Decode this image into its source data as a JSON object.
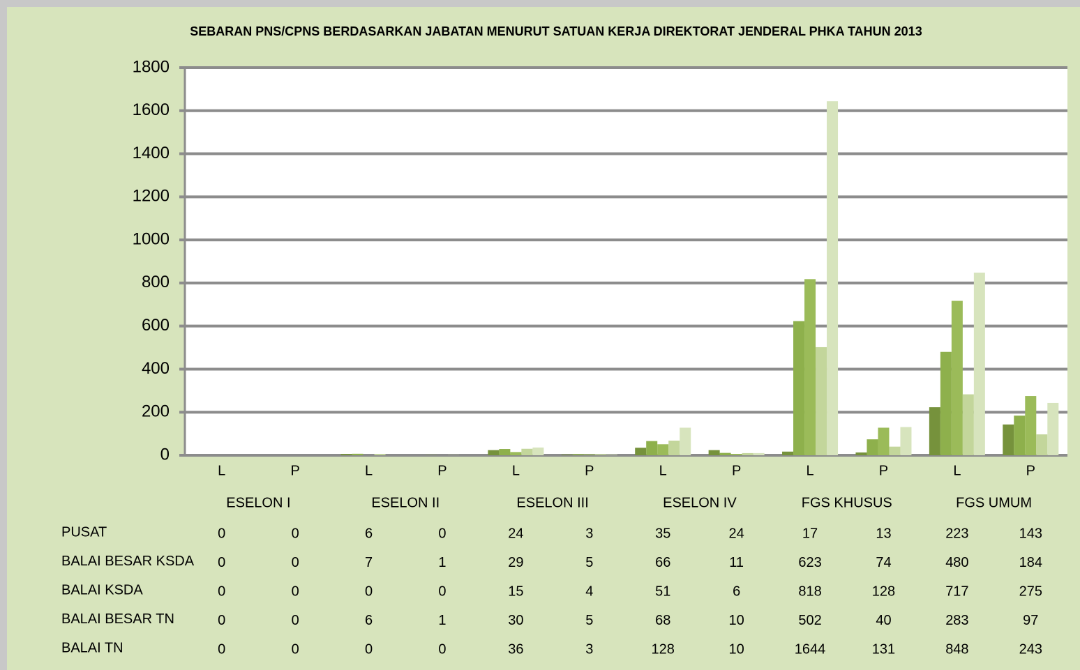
{
  "chart_data": {
    "type": "bar",
    "title": "SEBARAN PNS/CPNS BERDASARKAN JABATAN MENURUT SATUAN KERJA DIREKTORAT JENDERAL PHKA TAHUN  2013",
    "categories": [
      "L",
      "P",
      "L",
      "P",
      "L",
      "P",
      "L",
      "P",
      "L",
      "P",
      "L",
      "P"
    ],
    "groups": [
      "ESELON I",
      "ESELON II",
      "ESELON III",
      "ESELON IV",
      "FGS KHUSUS",
      "FGS UMUM"
    ],
    "series": [
      {
        "name": "PUSAT",
        "color": "#76923c",
        "values": [
          0,
          0,
          6,
          0,
          24,
          3,
          35,
          24,
          17,
          13,
          223,
          143
        ]
      },
      {
        "name": "BALAI BESAR KSDA",
        "color": "#8eb04c",
        "values": [
          0,
          0,
          7,
          1,
          29,
          5,
          66,
          11,
          623,
          74,
          480,
          184
        ]
      },
      {
        "name": "BALAI KSDA",
        "color": "#9bbb59",
        "values": [
          0,
          0,
          0,
          0,
          15,
          4,
          51,
          6,
          818,
          128,
          717,
          275
        ]
      },
      {
        "name": "BALAI BESAR TN",
        "color": "#c3d69b",
        "values": [
          0,
          0,
          6,
          1,
          30,
          5,
          68,
          10,
          502,
          40,
          283,
          97
        ]
      },
      {
        "name": "BALAI TN",
        "color": "#d7e4bd",
        "values": [
          0,
          0,
          0,
          0,
          36,
          3,
          128,
          10,
          1644,
          131,
          848,
          243
        ]
      }
    ],
    "ylim": [
      0,
      1800
    ],
    "yticks": [
      0,
      200,
      400,
      600,
      800,
      1000,
      1200,
      1400,
      1600,
      1800
    ],
    "grid": true
  }
}
